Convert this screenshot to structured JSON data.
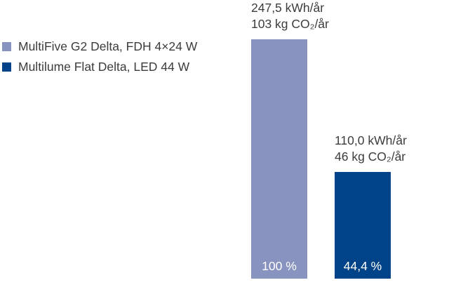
{
  "legend": {
    "items": [
      {
        "label": "MultiFive G2 Delta, FDH 4×24 W",
        "color": "#8894BF"
      },
      {
        "label": "Multilume Flat Delta, LED 44 W",
        "color": "#004389"
      }
    ]
  },
  "chart_data": {
    "type": "bar",
    "title": "",
    "categories": [
      "MultiFive G2 Delta, FDH 4×24 W",
      "Multilume Flat Delta, LED 44 W"
    ],
    "values": [
      247.5,
      110.0
    ],
    "value_unit": "kWh/år",
    "co2_values": [
      103,
      46
    ],
    "co2_unit": "kg CO₂/år",
    "percent_of_reference": [
      100,
      44.4
    ],
    "bar_colors": [
      "#8894BF",
      "#004389"
    ],
    "text_color": "#3C3C3B",
    "in_bar_label_color": "#ffffff",
    "grid": false,
    "axes_visible": false,
    "legend_position": "top-left",
    "bars": [
      {
        "annotation_line1": "247,5 kWh/år",
        "annotation_line2": "103 kg CO₂/år",
        "percent_label": "100 %"
      },
      {
        "annotation_line1": "110,0 kWh/år",
        "annotation_line2": "46 kg CO₂/år",
        "percent_label": "44,4 %"
      }
    ]
  }
}
